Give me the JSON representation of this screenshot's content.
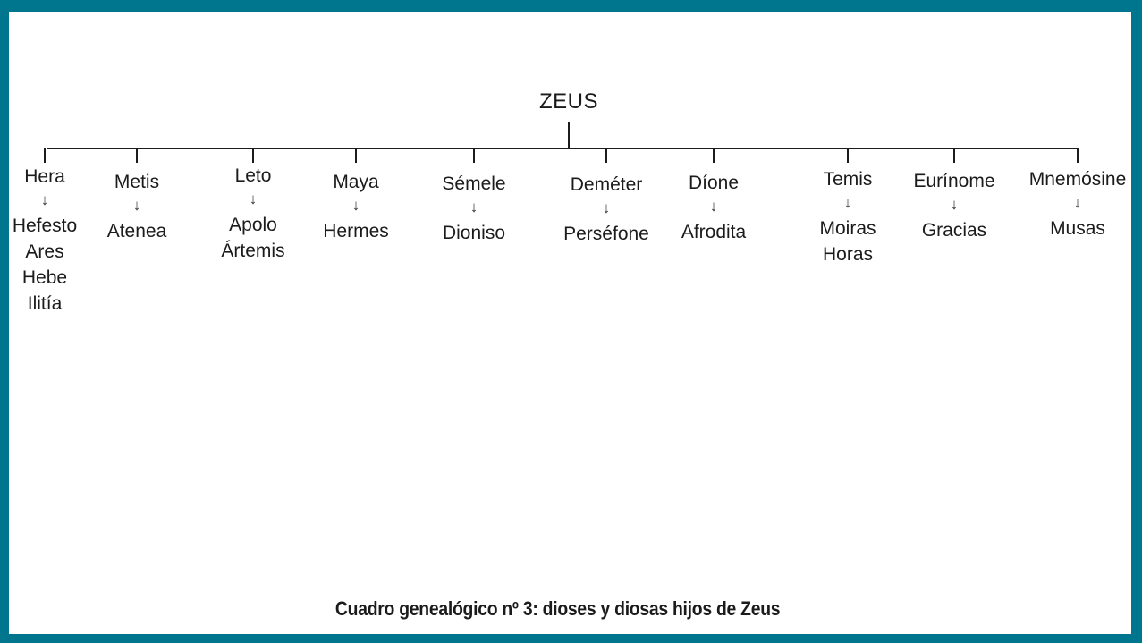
{
  "diagram": {
    "root": "ZEUS",
    "arrow_glyph": "↓",
    "caption": "Cuadro genealógico nº 3: dioses y diosas hijos de Zeus",
    "accent_border_color": "#00758E",
    "line_color": "#1c1c1c",
    "columns": [
      {
        "consort": "Hera",
        "children": [
          "Hefesto",
          "Ares",
          "Hebe",
          "Ilitía"
        ]
      },
      {
        "consort": "Metis",
        "children": [
          "Atenea"
        ]
      },
      {
        "consort": "Leto",
        "children": [
          "Apolo",
          "Ártemis"
        ]
      },
      {
        "consort": "Maya",
        "children": [
          "Hermes"
        ]
      },
      {
        "consort": "Sémele",
        "children": [
          "Dioniso"
        ]
      },
      {
        "consort": "Deméter",
        "children": [
          "Perséfone"
        ]
      },
      {
        "consort": "Díone",
        "children": [
          "Afrodita"
        ]
      },
      {
        "consort": "Temis",
        "children": [
          "Moiras",
          "Horas"
        ]
      },
      {
        "consort": "Eurínome",
        "children": [
          "Gracias"
        ]
      },
      {
        "consort": "Mnemósine",
        "children": [
          "Musas"
        ]
      }
    ]
  }
}
